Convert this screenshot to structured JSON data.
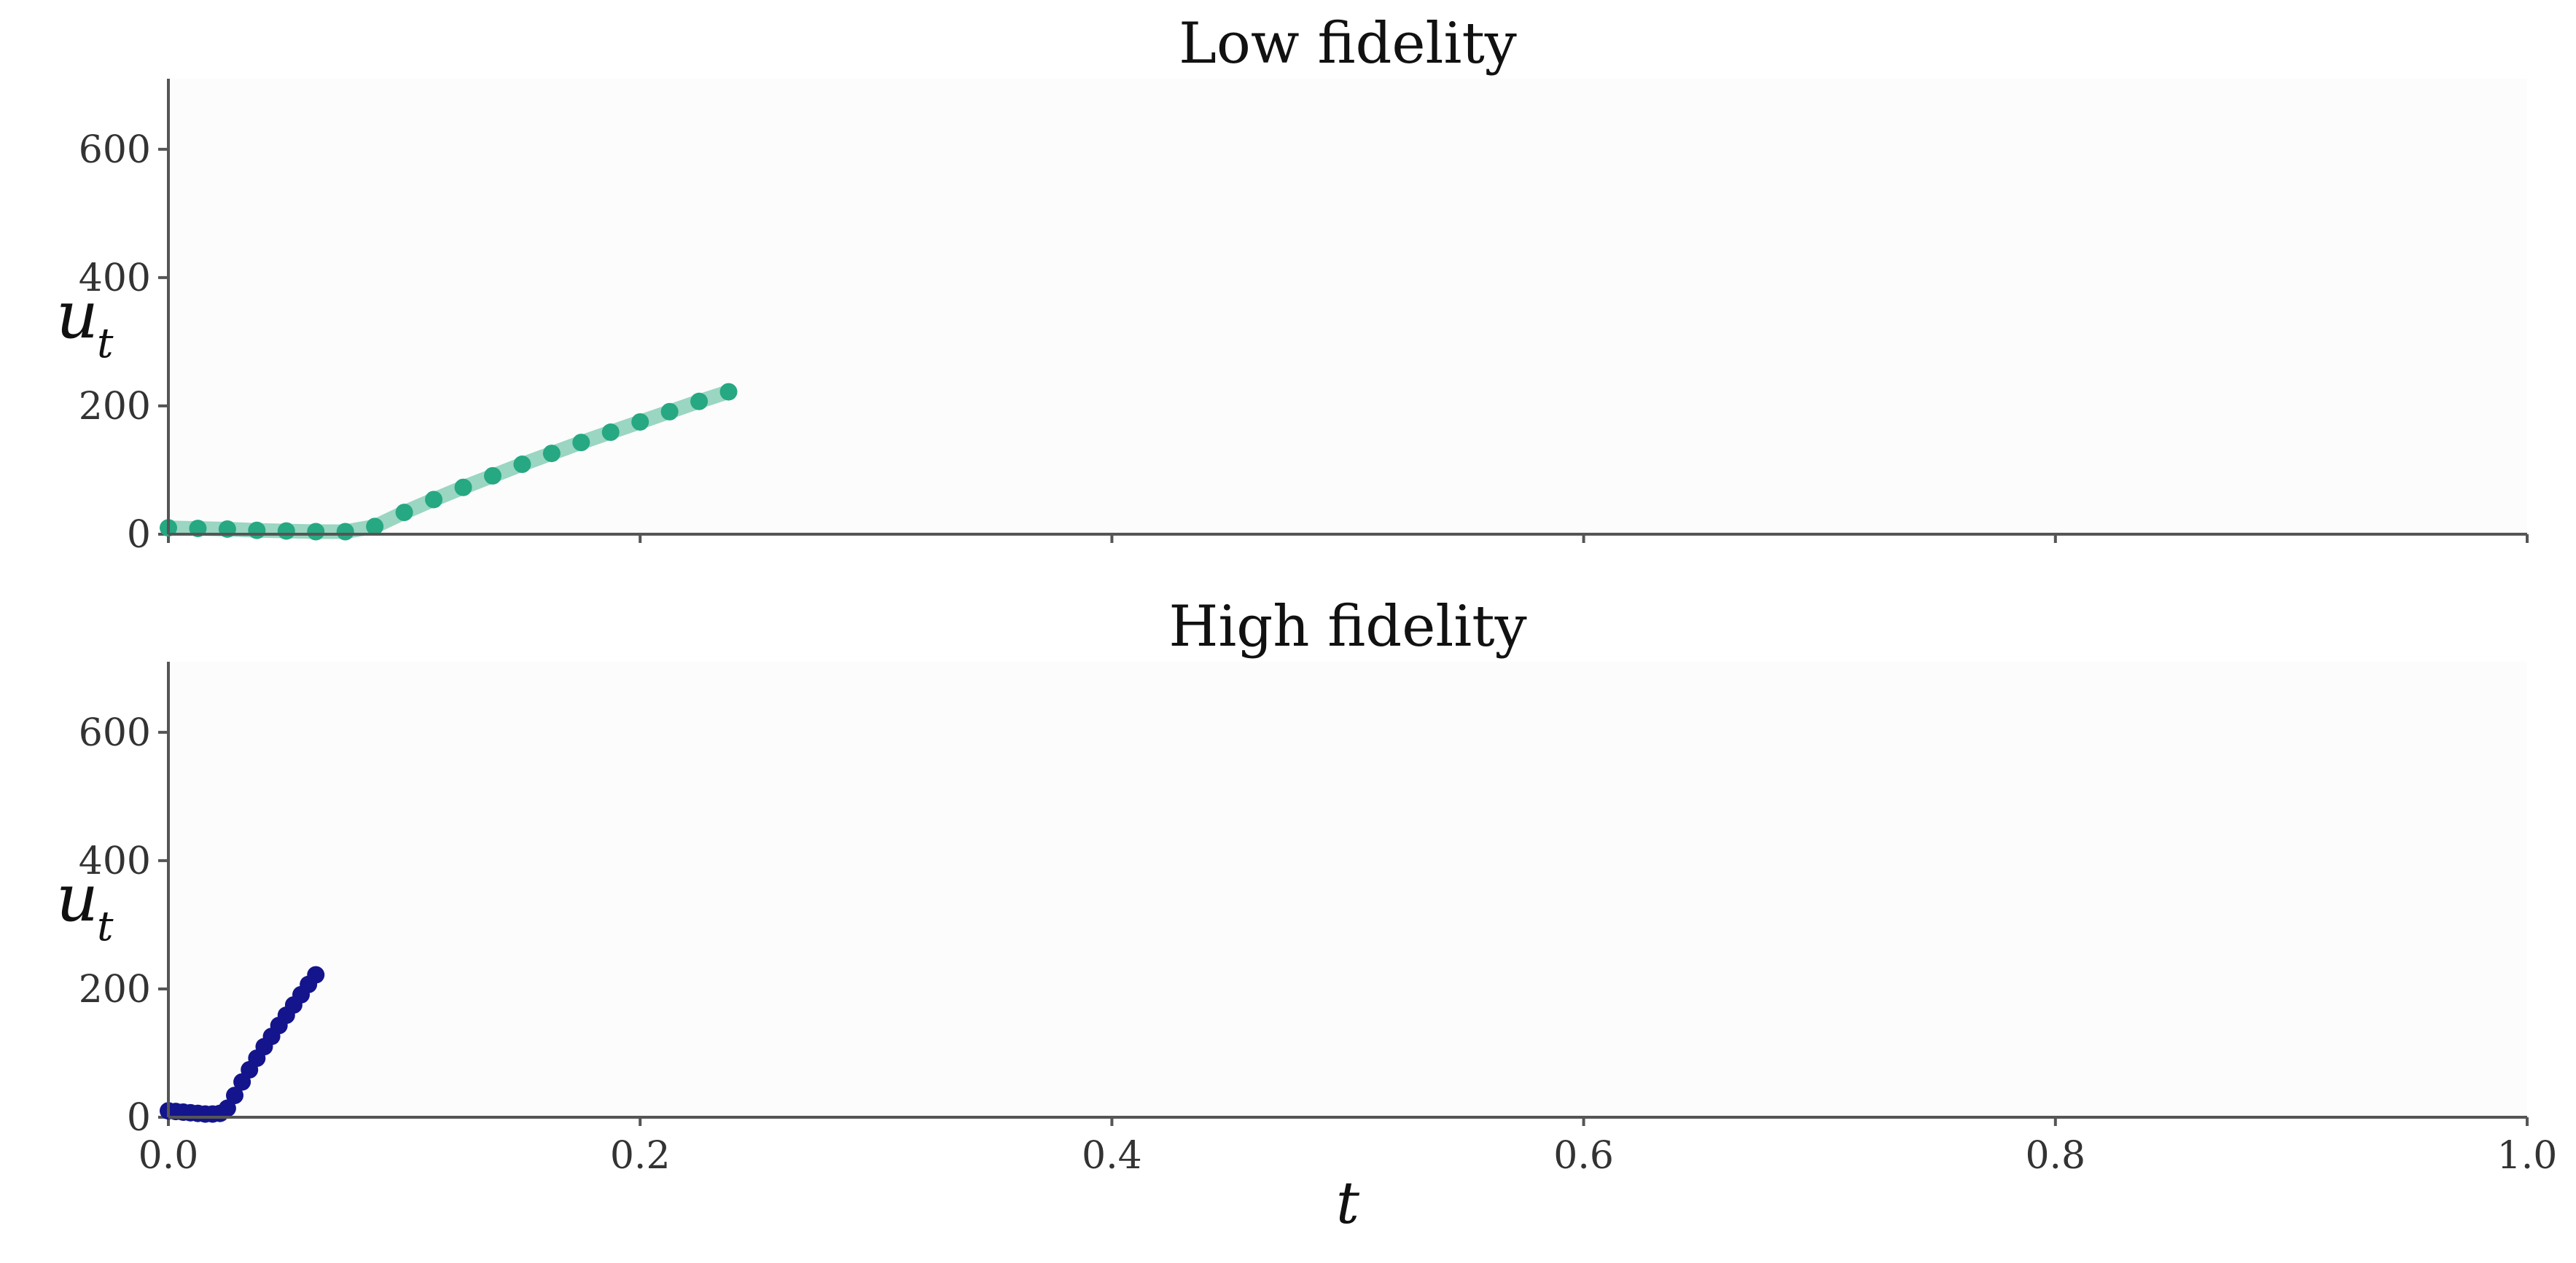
{
  "chart_data": [
    {
      "type": "line",
      "title": "Low fidelity",
      "xlabel": "t",
      "ylabel": "u",
      "ylabel_sub": "t",
      "xlim": [
        0,
        1
      ],
      "ylim": [
        0,
        710
      ],
      "yticks": [
        "0",
        "200",
        "400",
        "600"
      ],
      "ytick_values": [
        0,
        200,
        400,
        600
      ],
      "xtick_values": [
        0,
        0.2,
        0.4,
        0.6,
        0.8,
        1.0
      ],
      "xtick_labels_visible": false,
      "grid": false,
      "color": "#26a882",
      "line_color": "#8fd1bb",
      "series": [
        {
          "x": [
            0.0,
            0.0125,
            0.025,
            0.0375,
            0.05,
            0.0625,
            0.075,
            0.0875,
            0.1,
            0.1125,
            0.125,
            0.1375,
            0.15,
            0.1625,
            0.175,
            0.1875,
            0.2,
            0.2125,
            0.225,
            0.2375
          ],
          "values": [
            10,
            9,
            8,
            6,
            5,
            4,
            4,
            12,
            34,
            54,
            73,
            91,
            109,
            126,
            143,
            159,
            175,
            191,
            207,
            222
          ]
        }
      ]
    },
    {
      "type": "line",
      "title": "High fidelity",
      "xlabel": "t",
      "ylabel": "u",
      "ylabel_sub": "t",
      "xlim": [
        0,
        1
      ],
      "ylim": [
        0,
        710
      ],
      "yticks": [
        "0",
        "200",
        "400",
        "600"
      ],
      "ytick_values": [
        0,
        200,
        400,
        600
      ],
      "xticks": [
        "0.0",
        "0.2",
        "0.4",
        "0.6",
        "0.8",
        "1.0"
      ],
      "xtick_values": [
        0,
        0.2,
        0.4,
        0.6,
        0.8,
        1.0
      ],
      "grid": false,
      "color": "#14148c",
      "line_color": "#14148c",
      "series": [
        {
          "x": [
            0.0,
            0.003125,
            0.00625,
            0.009375,
            0.0125,
            0.015625,
            0.01875,
            0.021875,
            0.025,
            0.028125,
            0.03125,
            0.034375,
            0.0375,
            0.040625,
            0.04375,
            0.046875,
            0.05,
            0.053125,
            0.05625,
            0.059375,
            0.0625
          ],
          "values": [
            10,
            9,
            8,
            7,
            6,
            5,
            5,
            6,
            14,
            34,
            55,
            74,
            92,
            110,
            126,
            143,
            159,
            175,
            191,
            207,
            222
          ]
        }
      ]
    }
  ]
}
